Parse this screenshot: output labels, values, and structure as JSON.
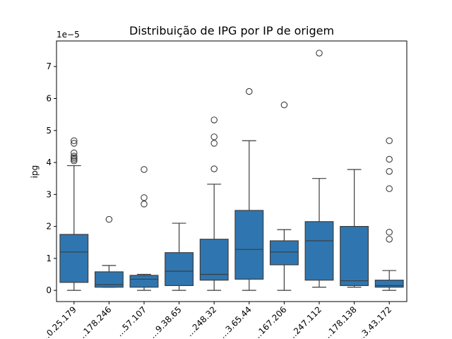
{
  "chart_data": {
    "type": "box",
    "title": "Distribuição de IPG por IP de origem",
    "ylabel": "ipg",
    "xlabel": "",
    "y_offset_label": "1e−5",
    "y_scale_factor": 1e-05,
    "ylim": [
      -0.35,
      7.8
    ],
    "yticks": [
      0,
      1,
      2,
      3,
      4,
      5,
      6,
      7
    ],
    "box_color": "#2f76b0",
    "categories": [
      "…0.25.179",
      "…178.246",
      "…57.107",
      "…9.38.65",
      "…248.32",
      "…3.65.44",
      "…167.206",
      "…247.112",
      "…178.138",
      "…3.43.172"
    ],
    "boxes": [
      {
        "whislo": 0.0,
        "q1": 0.25,
        "med": 1.2,
        "q3": 1.75,
        "whishi": 3.9,
        "fliers": [
          4.05,
          4.1,
          4.15,
          4.2,
          4.3,
          4.6,
          4.68
        ]
      },
      {
        "whislo": 0.1,
        "q1": 0.1,
        "med": 0.18,
        "q3": 0.58,
        "whishi": 0.78,
        "fliers": [
          2.22
        ]
      },
      {
        "whislo": 0.0,
        "q1": 0.1,
        "med": 0.35,
        "q3": 0.47,
        "whishi": 0.5,
        "fliers": [
          2.7,
          2.9,
          3.78
        ]
      },
      {
        "whislo": 0.0,
        "q1": 0.15,
        "med": 0.6,
        "q3": 1.18,
        "whishi": 2.1,
        "fliers": []
      },
      {
        "whislo": 0.0,
        "q1": 0.32,
        "med": 0.5,
        "q3": 1.6,
        "whishi": 3.32,
        "fliers": [
          3.8,
          4.6,
          4.8,
          5.33
        ]
      },
      {
        "whislo": 0.0,
        "q1": 0.35,
        "med": 1.28,
        "q3": 2.5,
        "whishi": 4.68,
        "fliers": [
          6.22
        ]
      },
      {
        "whislo": 0.0,
        "q1": 0.8,
        "med": 1.2,
        "q3": 1.55,
        "whishi": 1.9,
        "fliers": [
          5.8
        ]
      },
      {
        "whislo": 0.1,
        "q1": 0.32,
        "med": 1.55,
        "q3": 2.15,
        "whishi": 3.5,
        "fliers": [
          7.42
        ]
      },
      {
        "whislo": 0.1,
        "q1": 0.15,
        "med": 0.3,
        "q3": 2.0,
        "whishi": 3.78,
        "fliers": []
      },
      {
        "whislo": 0.0,
        "q1": 0.1,
        "med": 0.15,
        "q3": 0.32,
        "whishi": 0.62,
        "fliers": [
          1.6,
          1.82,
          3.18,
          3.72,
          4.1,
          4.68
        ]
      }
    ]
  }
}
